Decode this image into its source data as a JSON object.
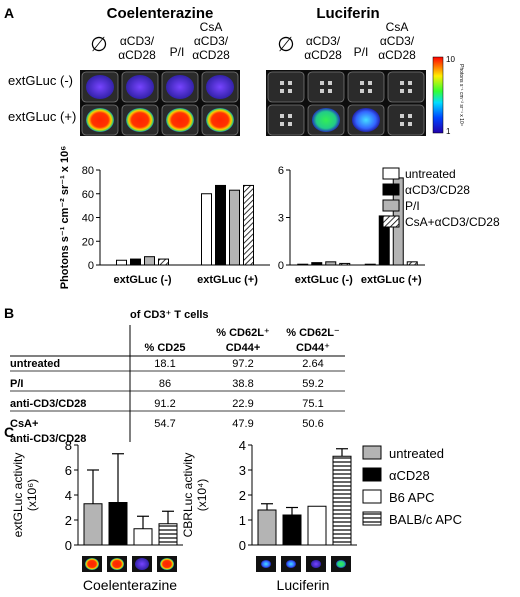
{
  "panel_a": {
    "letter": "A",
    "substrate_left": "Coelenterazine",
    "substrate_right": "Luciferin",
    "conditions": [
      {
        "line1": "∅",
        "line2": ""
      },
      {
        "line1": "αCD3/",
        "line2": "αCD28"
      },
      {
        "line1": "P/I",
        "line2": ""
      },
      {
        "line1": "CsA",
        "line2": "αCD3/",
        "line3": "αCD28"
      }
    ],
    "row_labels": [
      "extGLuc (-)",
      "extGLuc (+)"
    ],
    "colorbar": {
      "max": "10",
      "min": "1",
      "label": "Photons s⁻¹ cm⁻² sr⁻¹ x 10⁴"
    },
    "legend": [
      "untreated",
      "αCD3/CD28",
      "P/I",
      "CsA+αCD3/CD28"
    ]
  },
  "panel_b": {
    "letter": "B",
    "group_header": "of CD3⁺ T cells",
    "columns": [
      "% CD25",
      "% CD62L⁺ CD44+",
      "% CD62L⁻ CD44⁺"
    ],
    "rows": [
      {
        "label": "untreated",
        "values": [
          "18.1",
          "97.2",
          "2.64"
        ]
      },
      {
        "label": "P/I",
        "values": [
          "86",
          "38.8",
          "59.2"
        ]
      },
      {
        "label": "anti-CD3/CD28",
        "values": [
          "91.2",
          "22.9",
          "75.1"
        ]
      },
      {
        "label": "CsA+ anti-CD3/CD28",
        "values": [
          "54.7",
          "47.9",
          "50.6"
        ]
      }
    ]
  },
  "panel_c": {
    "letter": "C",
    "left_xlabel": "Coelenterazine",
    "right_xlabel": "Luciferin",
    "legend": [
      "untreated",
      "αCD28",
      "B6 APC",
      "BALB/c APC"
    ]
  },
  "chart_data": [
    {
      "type": "bar",
      "panel": "A-left",
      "categories": [
        "extGLuc (-)",
        "extGLuc (+)"
      ],
      "series": [
        {
          "name": "untreated",
          "values": [
            4,
            60
          ]
        },
        {
          "name": "αCD3/CD28",
          "values": [
            5,
            67
          ]
        },
        {
          "name": "P/I",
          "values": [
            7,
            63
          ]
        },
        {
          "name": "CsA+αCD3/CD28",
          "values": [
            5,
            67
          ]
        }
      ],
      "ylabel": "Photons s⁻¹ cm⁻² sr⁻¹ x 10⁶",
      "ylim": [
        0,
        80
      ],
      "yticks": [
        0,
        20,
        40,
        60,
        80
      ]
    },
    {
      "type": "bar",
      "panel": "A-right",
      "categories": [
        "extGLuc (-)",
        "extGLuc (+)"
      ],
      "series": [
        {
          "name": "untreated",
          "values": [
            0.05,
            0.05
          ]
        },
        {
          "name": "αCD3/CD28",
          "values": [
            0.15,
            3.1
          ]
        },
        {
          "name": "P/I",
          "values": [
            0.2,
            5.5
          ]
        },
        {
          "name": "CsA+αCD3/CD28",
          "values": [
            0.1,
            0.2
          ]
        }
      ],
      "ylim": [
        0,
        6
      ],
      "yticks": [
        0,
        3,
        6
      ]
    },
    {
      "type": "bar",
      "panel": "C-left",
      "categories": [
        "untreated",
        "αCD28",
        "B6 APC",
        "BALB/c APC"
      ],
      "values": [
        3.3,
        3.4,
        1.3,
        1.7
      ],
      "errors": [
        2.7,
        3.9,
        1.0,
        1.0
      ],
      "ylabel": "extGLuc activity (x10⁶)",
      "ylim": [
        0,
        8
      ],
      "yticks": [
        0,
        2,
        4,
        6,
        8
      ]
    },
    {
      "type": "bar",
      "panel": "C-right",
      "categories": [
        "untreated",
        "αCD28",
        "B6 APC",
        "BALB/c APC"
      ],
      "values": [
        1.4,
        1.2,
        1.55,
        3.55
      ],
      "errors": [
        0.25,
        0.3,
        0.0,
        0.3
      ],
      "ylabel": "CBRLuc activity (x10⁴)",
      "ylim": [
        0,
        4
      ],
      "yticks": [
        0,
        1,
        2,
        3,
        4
      ]
    }
  ],
  "colors": {
    "black": "#000000",
    "gray": "#b4b4b4",
    "white": "#ffffff",
    "well_bg": "#1a1a1a",
    "well_blue": "#4444cc"
  }
}
